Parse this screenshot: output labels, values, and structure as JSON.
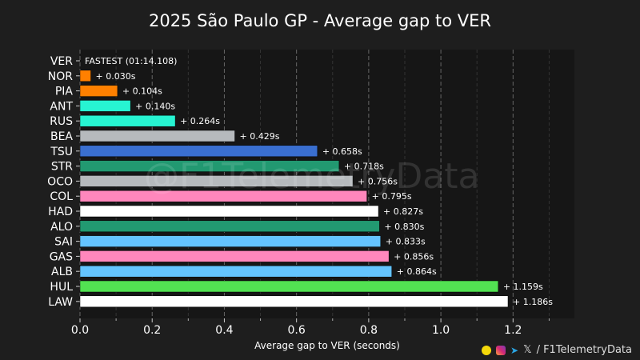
{
  "title": "2025 São Paulo GP - Average gap to VER",
  "watermark": "@F1TelemetryData",
  "footer": {
    "handle": "/ F1TelemetryData",
    "icons": [
      "snapchat-icon",
      "instagram-icon",
      "telegram-icon",
      "x-icon"
    ],
    "x_glyph": "𝕏"
  },
  "chart_data": {
    "type": "bar",
    "orientation": "horizontal",
    "title": "2025 São Paulo GP - Average gap to VER",
    "xlabel": "Average gap to VER (seconds)",
    "ylabel": "",
    "xlim": [
      0,
      1.37
    ],
    "xticks": [
      "0.0",
      "0.2",
      "0.4",
      "0.6",
      "0.8",
      "1.0",
      "1.2"
    ],
    "grid": true,
    "fastest_label": "FASTEST (01:14.108)",
    "categories": [
      "VER",
      "NOR",
      "PIA",
      "ANT",
      "RUS",
      "BEA",
      "TSU",
      "STR",
      "OCO",
      "COL",
      "HAD",
      "ALO",
      "SAI",
      "GAS",
      "ALB",
      "HUL",
      "LAW"
    ],
    "values": [
      0,
      0.03,
      0.104,
      0.14,
      0.264,
      0.429,
      0.658,
      0.718,
      0.756,
      0.795,
      0.827,
      0.83,
      0.833,
      0.856,
      0.864,
      1.159,
      1.186
    ],
    "labels": [
      "",
      "+ 0.030s",
      "+ 0.104s",
      "+ 0.140s",
      "+ 0.264s",
      "+ 0.429s",
      "+ 0.658s",
      "+ 0.718s",
      "+ 0.756s",
      "+ 0.795s",
      "+ 0.827s",
      "+ 0.830s",
      "+ 0.833s",
      "+ 0.856s",
      "+ 0.864s",
      "+ 1.159s",
      "+ 1.186s"
    ],
    "colors": [
      "#3671c6",
      "#ff8000",
      "#ff8000",
      "#27f4d2",
      "#27f4d2",
      "#b6babd",
      "#3a6fd0",
      "#229971",
      "#b6babd",
      "#ff87bc",
      "#ffffff",
      "#229971",
      "#64c4ff",
      "#ff87bc",
      "#64c4ff",
      "#52e252",
      "#ffffff"
    ]
  }
}
